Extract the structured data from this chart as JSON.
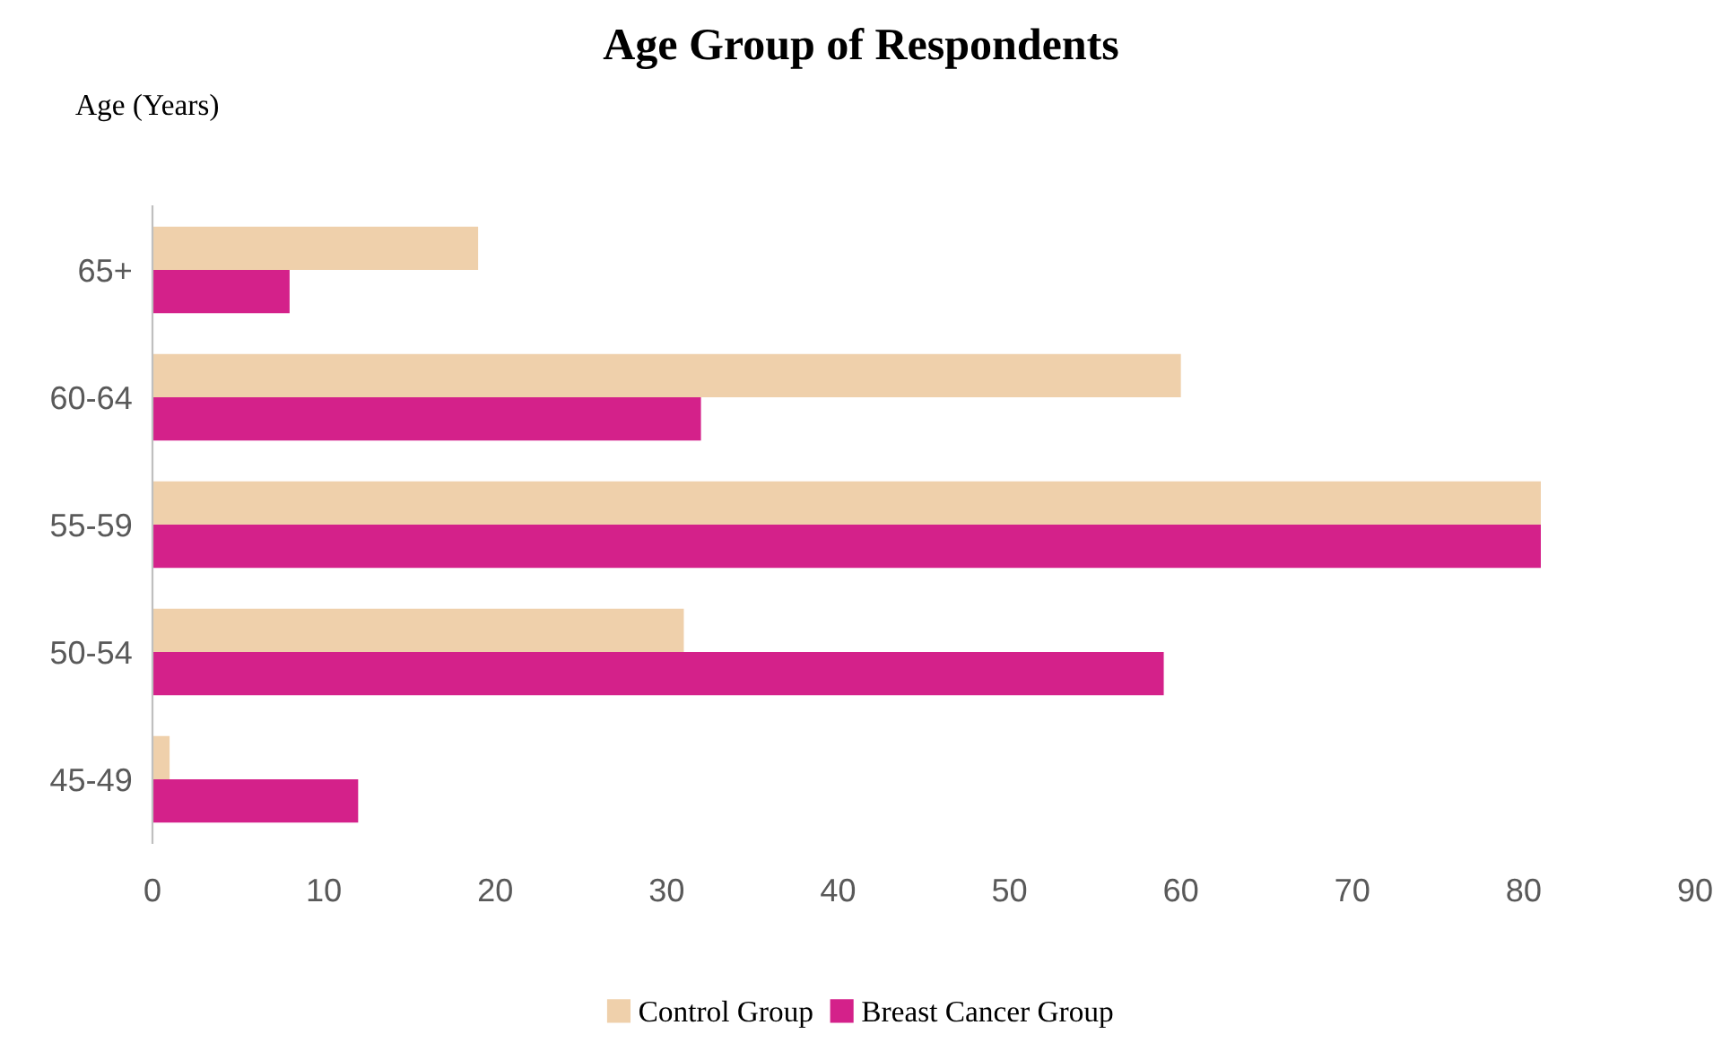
{
  "chart_data": {
    "type": "bar",
    "orientation": "horizontal",
    "title": "Age Group of Respondents",
    "ylabel": "Age (Years)",
    "categories": [
      "65+",
      "60-64",
      "55-59",
      "50-54",
      "45-49"
    ],
    "series": [
      {
        "name": "Control Group",
        "color": "#efd0ab",
        "values": [
          19,
          60,
          81,
          31,
          1
        ]
      },
      {
        "name": "Breast Cancer Group",
        "color": "#d4218a",
        "values": [
          8,
          32,
          81,
          59,
          12
        ]
      }
    ],
    "xlim": [
      0,
      90
    ],
    "xticks": [
      0,
      10,
      20,
      30,
      40,
      50,
      60,
      70,
      80,
      90
    ],
    "grid": false,
    "legend": "bottom"
  }
}
